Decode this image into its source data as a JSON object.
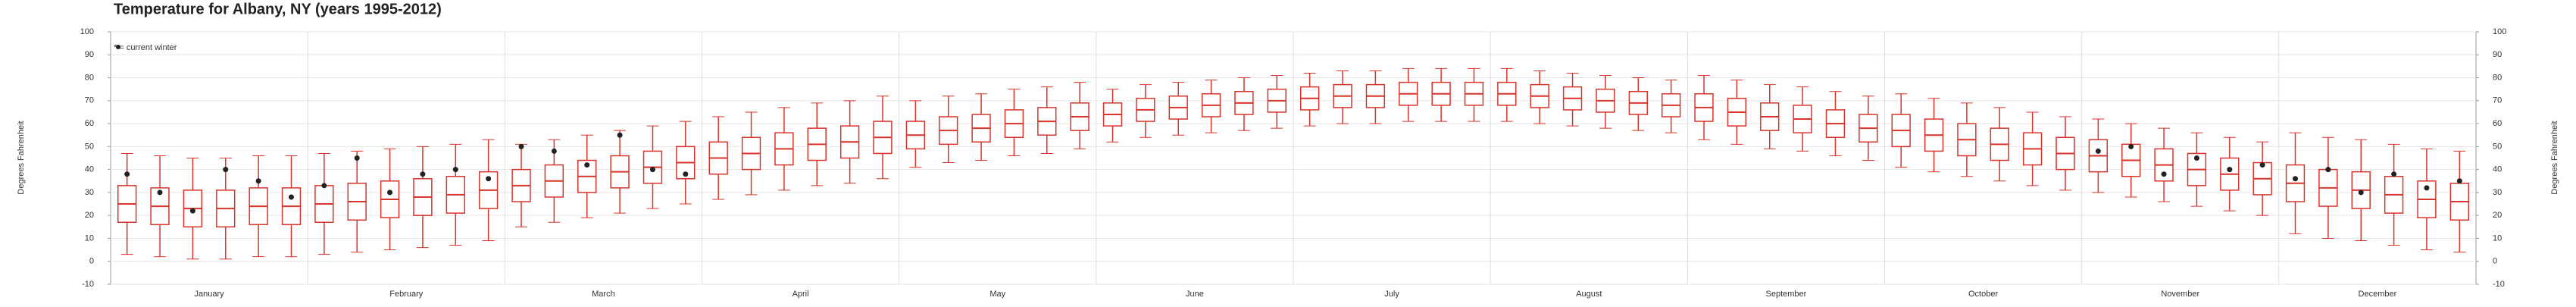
{
  "chart_data": {
    "type": "boxplot",
    "title": "Temperature for Albany, NY (years 1995-2012)",
    "ylabel": "Degrees Fahrenheit",
    "categories": [
      "January",
      "February",
      "March",
      "April",
      "May",
      "June",
      "July",
      "August",
      "September",
      "October",
      "November",
      "December"
    ],
    "ylim": [
      -10,
      100
    ],
    "yticks": [
      -10,
      0,
      10,
      20,
      30,
      40,
      50,
      60,
      70,
      80,
      90,
      100
    ],
    "grid": true,
    "color": "#d9342b",
    "boxes": {
      "low": [
        3,
        2,
        1,
        1,
        2,
        2,
        3,
        4,
        5,
        6,
        7,
        9,
        15,
        17,
        19,
        21,
        23,
        25,
        27,
        29,
        31,
        33,
        34,
        36,
        41,
        43,
        44,
        46,
        47,
        49,
        52,
        54,
        55,
        56,
        57,
        58,
        59,
        60,
        60,
        61,
        61,
        61,
        61,
        60,
        59,
        58,
        57,
        56,
        53,
        51,
        49,
        48,
        46,
        44,
        41,
        39,
        37,
        35,
        33,
        31,
        30,
        28,
        26,
        24,
        22,
        20,
        12,
        10,
        9,
        7,
        5,
        4
      ],
      "q1": [
        17,
        16,
        15,
        15,
        16,
        16,
        17,
        18,
        19,
        20,
        21,
        23,
        26,
        28,
        30,
        32,
        34,
        36,
        38,
        40,
        42,
        44,
        45,
        47,
        49,
        51,
        52,
        54,
        55,
        57,
        59,
        61,
        62,
        63,
        64,
        65,
        66,
        67,
        67,
        68,
        68,
        68,
        68,
        67,
        66,
        65,
        64,
        63,
        61,
        59,
        57,
        56,
        54,
        52,
        50,
        48,
        46,
        44,
        42,
        40,
        39,
        37,
        35,
        33,
        31,
        29,
        26,
        24,
        23,
        21,
        19,
        18
      ],
      "median": [
        25,
        24,
        23,
        23,
        24,
        24,
        25,
        26,
        27,
        28,
        29,
        31,
        33,
        35,
        37,
        39,
        41,
        43,
        45,
        47,
        49,
        51,
        52,
        54,
        55,
        57,
        58,
        60,
        61,
        63,
        64,
        66,
        67,
        68,
        69,
        70,
        71,
        72,
        72,
        73,
        73,
        73,
        73,
        72,
        71,
        70,
        69,
        68,
        67,
        65,
        63,
        62,
        60,
        58,
        57,
        55,
        53,
        51,
        49,
        47,
        46,
        44,
        42,
        40,
        38,
        36,
        34,
        32,
        31,
        29,
        27,
        26
      ],
      "q3": [
        33,
        32,
        31,
        31,
        32,
        32,
        33,
        34,
        35,
        36,
        37,
        39,
        40,
        42,
        44,
        46,
        48,
        50,
        52,
        54,
        56,
        58,
        59,
        61,
        61,
        63,
        64,
        66,
        67,
        69,
        69,
        71,
        72,
        73,
        74,
        75,
        76,
        77,
        77,
        78,
        78,
        78,
        78,
        77,
        76,
        75,
        74,
        73,
        73,
        71,
        69,
        68,
        66,
        64,
        64,
        62,
        60,
        58,
        56,
        54,
        53,
        51,
        49,
        47,
        45,
        43,
        42,
        40,
        39,
        37,
        35,
        34
      ],
      "high": [
        47,
        46,
        45,
        45,
        46,
        46,
        47,
        48,
        49,
        50,
        51,
        53,
        51,
        53,
        55,
        57,
        59,
        61,
        63,
        65,
        67,
        69,
        70,
        72,
        70,
        72,
        73,
        75,
        76,
        78,
        75,
        77,
        78,
        79,
        80,
        81,
        82,
        83,
        83,
        84,
        84,
        84,
        84,
        83,
        82,
        81,
        80,
        79,
        81,
        79,
        77,
        76,
        74,
        72,
        73,
        71,
        69,
        67,
        65,
        63,
        62,
        60,
        58,
        56,
        54,
        52,
        56,
        54,
        53,
        51,
        49,
        48
      ]
    },
    "series": [
      {
        "name": "* = current winter",
        "color": "#222222",
        "values": [
          38,
          30,
          22,
          40,
          35,
          28,
          33,
          45,
          30,
          38,
          40,
          36,
          50,
          48,
          42,
          55,
          40,
          38,
          null,
          null,
          null,
          null,
          null,
          null,
          null,
          null,
          null,
          null,
          null,
          null,
          null,
          null,
          null,
          null,
          null,
          null,
          null,
          null,
          null,
          null,
          null,
          null,
          null,
          null,
          null,
          null,
          null,
          null,
          null,
          null,
          null,
          null,
          null,
          null,
          null,
          null,
          null,
          null,
          null,
          null,
          48,
          50,
          38,
          45,
          40,
          42,
          36,
          40,
          30,
          38,
          32,
          35
        ]
      }
    ]
  }
}
